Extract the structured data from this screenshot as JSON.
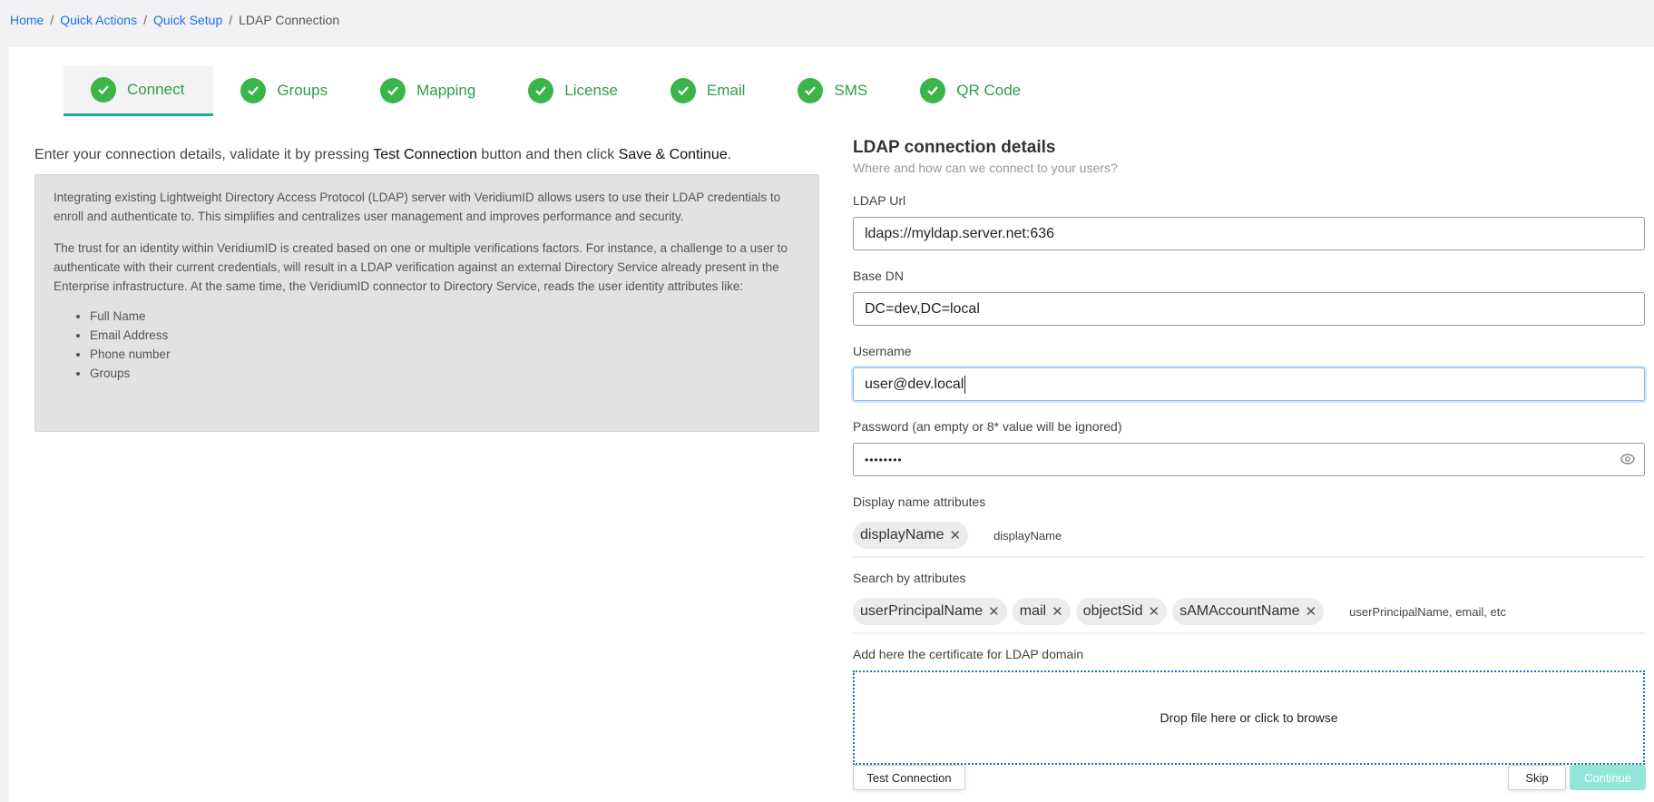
{
  "breadcrumb": {
    "items": [
      "Home",
      "Quick Actions",
      "Quick Setup"
    ],
    "current": "LDAP Connection",
    "separator": "/"
  },
  "tabs": [
    {
      "label": "Connect",
      "active": true
    },
    {
      "label": "Groups"
    },
    {
      "label": "Mapping"
    },
    {
      "label": "License"
    },
    {
      "label": "Email"
    },
    {
      "label": "SMS"
    },
    {
      "label": "QR Code"
    }
  ],
  "intro": {
    "pre": "Enter your connection details, validate it by pressing ",
    "b1": "Test Connection",
    "mid": " button and then click ",
    "b2": "Save & Continue",
    "post": "."
  },
  "info": {
    "p1": "Integrating existing Lightweight Directory Access Protocol (LDAP) server with VeridiumID allows users to use their LDAP credentials to enroll and authenticate to. This simplifies and centralizes user management and improves performance and security.",
    "p2": "The trust for an identity within VeridiumID is created based on one or multiple verifications factors. For instance, a challenge to a user to authenticate with their current credentials, will result in a LDAP verification against an external Directory Service already present in the Enterprise infrastructure. At the same time, the VeridiumID connector to Directory Service, reads the user identity attributes like:",
    "list": [
      "Full Name",
      "Email Address",
      "Phone number",
      "Groups"
    ]
  },
  "form": {
    "title": "LDAP connection details",
    "subtitle": "Where and how can we connect to your users?",
    "url_label": "LDAP Url",
    "url_value": "ldaps://myldap.server.net:636",
    "basedn_label": "Base DN",
    "basedn_value": "DC=dev,DC=local",
    "username_label": "Username",
    "username_value": "user@dev.local",
    "password_label": "Password (an empty or 8* value will be ignored)",
    "password_value": "••••••••",
    "display_label": "Display name attributes",
    "display_chips": [
      "displayName"
    ],
    "display_placeholder": "displayName",
    "search_label": "Search by attributes",
    "search_chips": [
      "userPrincipalName",
      "mail",
      "objectSid",
      "sAMAccountName"
    ],
    "search_placeholder": "userPrincipalName, email, etc",
    "cert_label": "Add here the certificate for LDAP domain",
    "drop_text": "Drop file here or click to browse"
  },
  "buttons": {
    "test": "Test Connection",
    "skip": "Skip",
    "continue": "Continue"
  },
  "colors": {
    "accent": "#3bb54a",
    "link": "#1a73e8",
    "continue_bg": "#93e5da",
    "tab_underline": "#1fae95"
  }
}
